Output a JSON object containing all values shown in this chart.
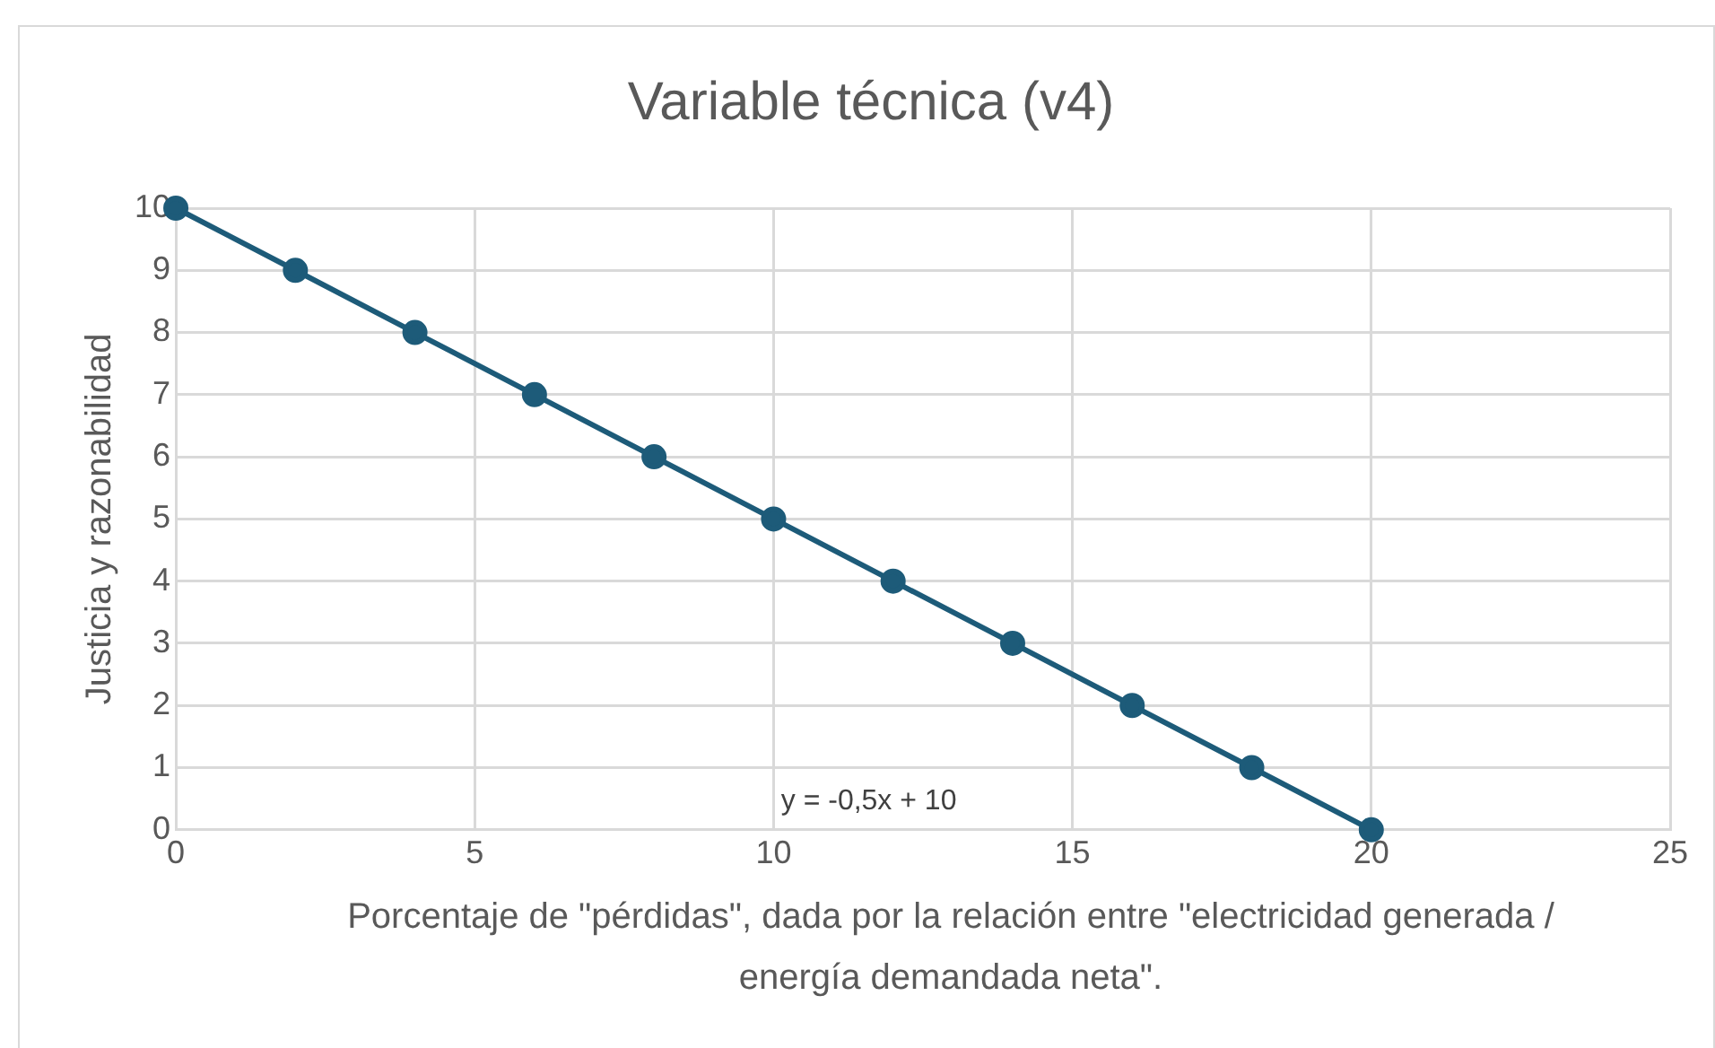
{
  "chart_data": {
    "type": "line",
    "title": "Variable técnica (v4)",
    "xlabel": "Porcentaje de \"pérdidas\", dada por la relación entre \"electricidad generada / energía demandada neta\".",
    "ylabel": "Justicia y razonabilidad",
    "x": [
      0,
      2,
      4,
      6,
      8,
      10,
      12,
      14,
      16,
      18,
      20
    ],
    "series": [
      {
        "color": "#1d5b79",
        "values": [
          10,
          9,
          8,
          7,
          6,
          5,
          4,
          3,
          2,
          1,
          0
        ]
      }
    ],
    "xlim": [
      0,
      25
    ],
    "xticks": [
      0,
      5,
      10,
      15,
      20,
      25
    ],
    "ylim": [
      0,
      10
    ],
    "yticks": [
      0,
      1,
      2,
      3,
      4,
      5,
      6,
      7,
      8,
      9,
      10
    ],
    "grid": true,
    "legend": false,
    "marker": "circle",
    "line_style": "solid",
    "annotations": [
      "y = -0,5x + 10"
    ]
  }
}
